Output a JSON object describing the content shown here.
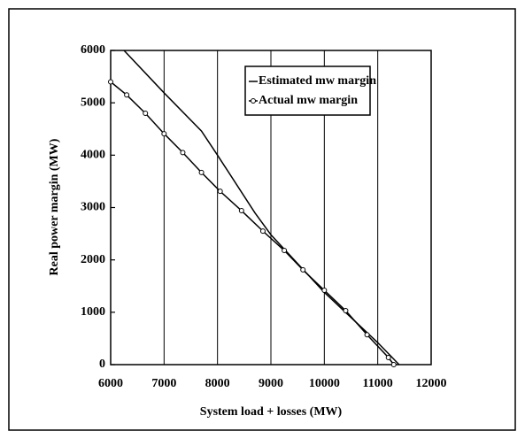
{
  "chart_data": {
    "type": "line",
    "xlabel": "System load + losses (MW)",
    "ylabel": "Real power margin (MW)",
    "xlim": [
      6000,
      12000
    ],
    "xticks": [
      6000,
      7000,
      8000,
      9000,
      10000,
      11000,
      12000
    ],
    "ylim": [
      0,
      6000
    ],
    "yticks": [
      0,
      1000,
      2000,
      3000,
      4000,
      5000,
      6000
    ],
    "grid": "x",
    "legend": "upper right",
    "series": [
      {
        "name": "Estimated mw margin",
        "color": "#000000",
        "marker": "none",
        "x": [
          6250,
          7000,
          7700,
          8000,
          8700,
          9000,
          10000,
          11000,
          11400
        ],
        "values": [
          6000,
          5190,
          4460,
          4000,
          2900,
          2480,
          1380,
          420,
          0
        ]
      },
      {
        "name": "Actual mw margin",
        "color": "#000000",
        "marker": "circle",
        "x": [
          6000,
          6300,
          6650,
          7000,
          7350,
          7700,
          8050,
          8450,
          8850,
          9250,
          9600,
          10000,
          10400,
          10800,
          11200,
          11300
        ],
        "values": [
          5400,
          5150,
          4800,
          4410,
          4050,
          3670,
          3310,
          2940,
          2550,
          2180,
          1810,
          1420,
          1030,
          570,
          135,
          0
        ]
      }
    ]
  }
}
